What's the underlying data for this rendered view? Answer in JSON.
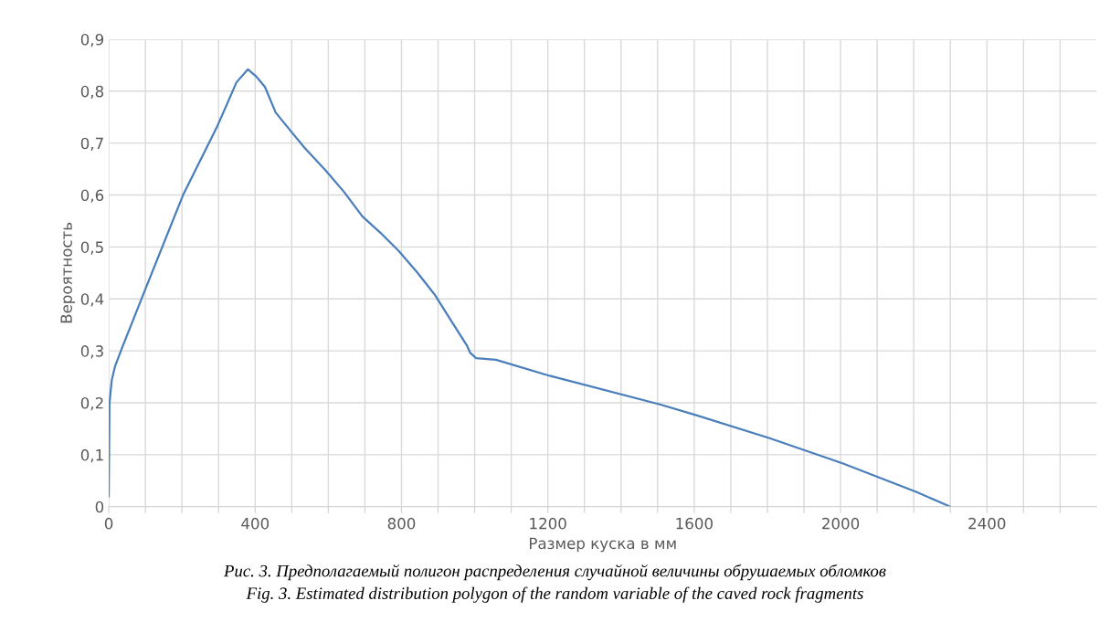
{
  "chart_data": {
    "type": "line",
    "xlabel": "Размер куска в мм",
    "ylabel": "Вероятность",
    "x": [
      0,
      2,
      8,
      17,
      37,
      95,
      203,
      295,
      349,
      380,
      402,
      427,
      456,
      494,
      535,
      593,
      643,
      693,
      743,
      793,
      843,
      892,
      942,
      979,
      988,
      1004,
      1058,
      1205,
      1506,
      1606,
      1806,
      2007,
      2208,
      2300
    ],
    "series": [
      {
        "color": "#4a7ebb",
        "values": [
          0.02,
          0.2,
          0.243,
          0.27,
          0.307,
          0.41,
          0.6,
          0.73,
          0.817,
          0.842,
          0.829,
          0.808,
          0.759,
          0.726,
          0.691,
          0.647,
          0.606,
          0.559,
          0.527,
          0.492,
          0.451,
          0.407,
          0.351,
          0.31,
          0.296,
          0.286,
          0.283,
          0.252,
          0.197,
          0.176,
          0.132,
          0.083,
          0.028,
          0
        ]
      }
    ],
    "xlim": [
      0,
      2700
    ],
    "ylim": [
      0,
      0.9
    ],
    "xticks": [
      0,
      {
        "value": 100,
        "label": null
      },
      {
        "value": 200,
        "label": null
      },
      {
        "value": 300,
        "label": null
      },
      400,
      {
        "value": 500,
        "label": null
      },
      {
        "value": 600,
        "label": null
      },
      {
        "value": 700,
        "label": null
      },
      800,
      {
        "value": 900,
        "label": null
      },
      {
        "value": 1000,
        "label": null
      },
      {
        "value": 1100,
        "label": null
      },
      1200,
      {
        "value": 1300,
        "label": null
      },
      {
        "value": 1400,
        "label": null
      },
      {
        "value": 1500,
        "label": null
      },
      1600,
      {
        "value": 1700,
        "label": null
      },
      {
        "value": 1800,
        "label": null
      },
      {
        "value": 1900,
        "label": null
      },
      2000,
      {
        "value": 2100,
        "label": null
      },
      {
        "value": 2200,
        "label": null
      },
      {
        "value": 2300,
        "label": null
      },
      2400,
      {
        "value": 2500,
        "label": null
      },
      {
        "value": 2600,
        "label": null
      }
    ],
    "yticks": [
      0,
      {
        "value": 0.1,
        "label": "0,1"
      },
      {
        "value": 0.2,
        "label": "0,2"
      },
      {
        "value": 0.3,
        "label": "0,3"
      },
      {
        "value": 0.4,
        "label": "0,4"
      },
      {
        "value": 0.5,
        "label": "0,5"
      },
      {
        "value": 0.6,
        "label": "0,6"
      },
      {
        "value": 0.7,
        "label": "0,7"
      },
      {
        "value": 0.8,
        "label": "0,8"
      },
      {
        "value": 0.9,
        "label": "0,9"
      }
    ],
    "grid": true,
    "marker": "none",
    "line_style": "solid",
    "annotations": [
      "Рис. 3. Предполагаемый полигон распределения случайной величины обрушаемых обломков",
      "Fig. 3. Estimated distribution polygon of the random variable of the caved rock fragments"
    ]
  }
}
